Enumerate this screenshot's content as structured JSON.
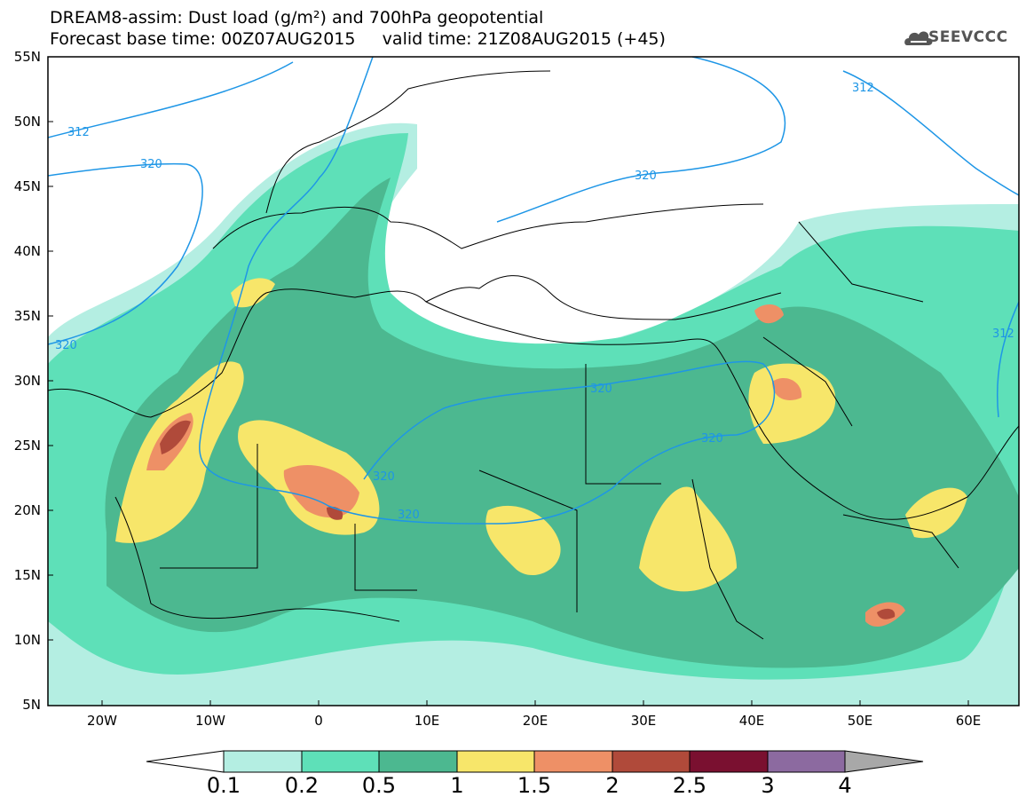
{
  "title": {
    "line1": "DREAM8-assim: Dust load (g/m²) and 700hPa geopotential",
    "line2": "Forecast base time: 00Z07AUG2015     valid time: 21Z08AUG2015 (+45)"
  },
  "logo": {
    "icon": "cloud-logo-icon",
    "text": "SEEVCCC"
  },
  "map": {
    "lat_labels": [
      "55N",
      "50N",
      "45N",
      "40N",
      "35N",
      "30N",
      "25N",
      "20N",
      "15N",
      "10N",
      "5N"
    ],
    "lon_labels": [
      "20W",
      "10W",
      "0",
      "10E",
      "20E",
      "30E",
      "40E",
      "50E",
      "60E"
    ],
    "contour_labels": [
      "312",
      "320",
      "320",
      "312",
      "320",
      "320",
      "320",
      "320",
      "320",
      "312"
    ]
  },
  "colorbar": {
    "levels": [
      "0.1",
      "0.2",
      "0.5",
      "1",
      "1.5",
      "2",
      "2.5",
      "3",
      "4"
    ],
    "colors": [
      "#b4eee2",
      "#5ee0b8",
      "#4cb890",
      "#f7e66a",
      "#ee9066",
      "#b04a3a",
      "#7a1030",
      "#8c6aa0"
    ],
    "under_color": "#ffffff",
    "over_color": "#a8a8a8"
  },
  "colors": {
    "contour": "#1e96e6",
    "border": "#000000"
  }
}
